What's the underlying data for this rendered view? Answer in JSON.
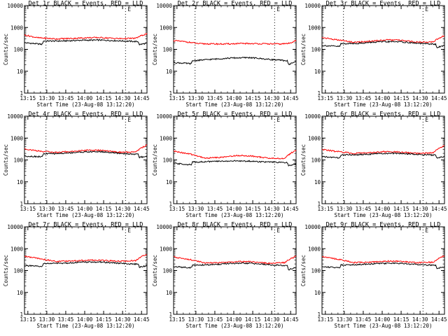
{
  "figure": {
    "xlabel": "Start Time (23-Aug-08 13:12:20)",
    "ylabel": "Counts/sec",
    "x_ticks": [
      "13:15",
      "13:30",
      "13:45",
      "14:00",
      "14:15",
      "14:30",
      "14:45"
    ],
    "y_ticks": [
      "1",
      "10",
      "100",
      "1000",
      "10000"
    ],
    "marker_letter": "E",
    "colors": {
      "events": "#000000",
      "lld": "#ff0000",
      "frame": "#000000"
    }
  },
  "chart_data": [
    {
      "type": "line",
      "title": "Det 1r BLACK = Events, RED = LLD",
      "yscale": "log",
      "ylim": [
        1,
        10000
      ],
      "xlim": [
        "13:12:20",
        "14:49:40"
      ],
      "x_range_minutes": [
        0,
        97
      ],
      "grid": false,
      "event_lines_minutes": [
        17,
        80
      ],
      "marker_minute": 83,
      "series": [
        {
          "name": "Events",
          "color": "#000000",
          "x_minutes": [
            0,
            14,
            15,
            30,
            45,
            60,
            75,
            90,
            91,
            97
          ],
          "values": [
            200,
            170,
            240,
            240,
            260,
            265,
            245,
            225,
            165,
            190
          ]
        },
        {
          "name": "LLD",
          "color": "#ff0000",
          "x_minutes": [
            0,
            10,
            25,
            40,
            50,
            60,
            75,
            88,
            97
          ],
          "values": [
            450,
            340,
            300,
            320,
            340,
            345,
            310,
            320,
            520
          ]
        }
      ]
    },
    {
      "type": "line",
      "title": "Det 2r BLACK = Events, RED = LLD",
      "yscale": "log",
      "ylim": [
        1,
        10000
      ],
      "xlim": [
        "13:12:20",
        "14:49:40"
      ],
      "x_range_minutes": [
        0,
        97
      ],
      "grid": false,
      "event_lines_minutes": [
        17,
        80
      ],
      "marker_minute": 83,
      "series": [
        {
          "name": "Events",
          "color": "#000000",
          "x_minutes": [
            0,
            14,
            15,
            30,
            45,
            60,
            75,
            90,
            91,
            97
          ],
          "values": [
            25,
            22,
            30,
            35,
            40,
            42,
            35,
            30,
            20,
            28
          ]
        },
        {
          "name": "LLD",
          "color": "#ff0000",
          "x_minutes": [
            0,
            10,
            20,
            40,
            55,
            70,
            85,
            92,
            97
          ],
          "values": [
            250,
            220,
            180,
            175,
            185,
            180,
            175,
            190,
            260
          ]
        }
      ]
    },
    {
      "type": "line",
      "title": "Det 3r BLACK = Events, RED = LLD",
      "yscale": "log",
      "ylim": [
        1,
        10000
      ],
      "xlim": [
        "13:12:20",
        "14:49:40"
      ],
      "x_range_minutes": [
        0,
        97
      ],
      "grid": false,
      "event_lines_minutes": [
        17,
        80
      ],
      "marker_minute": 83,
      "series": [
        {
          "name": "Events",
          "color": "#000000",
          "x_minutes": [
            0,
            14,
            15,
            30,
            45,
            60,
            75,
            90,
            91,
            97
          ],
          "values": [
            150,
            135,
            180,
            190,
            220,
            225,
            190,
            170,
            120,
            150
          ]
        },
        {
          "name": "LLD",
          "color": "#ff0000",
          "x_minutes": [
            0,
            10,
            25,
            40,
            50,
            60,
            75,
            88,
            97
          ],
          "values": [
            350,
            280,
            210,
            240,
            270,
            265,
            215,
            220,
            420
          ]
        }
      ]
    },
    {
      "type": "line",
      "title": "Det 4r BLACK = Events, RED = LLD",
      "yscale": "log",
      "ylim": [
        1,
        10000
      ],
      "xlim": [
        "13:12:20",
        "14:49:40"
      ],
      "x_range_minutes": [
        0,
        97
      ],
      "grid": false,
      "event_lines_minutes": [
        17,
        80
      ],
      "marker_minute": 83,
      "series": [
        {
          "name": "Events",
          "color": "#000000",
          "x_minutes": [
            0,
            14,
            15,
            30,
            45,
            60,
            75,
            90,
            91,
            97
          ],
          "values": [
            150,
            140,
            190,
            200,
            230,
            240,
            200,
            180,
            130,
            150
          ]
        },
        {
          "name": "LLD",
          "color": "#ff0000",
          "x_minutes": [
            0,
            10,
            25,
            40,
            50,
            60,
            75,
            88,
            97
          ],
          "values": [
            320,
            260,
            220,
            250,
            280,
            275,
            225,
            230,
            480
          ]
        }
      ]
    },
    {
      "type": "line",
      "title": "Det 5r BLACK = Events, RED = LLD",
      "yscale": "log",
      "ylim": [
        1,
        10000
      ],
      "xlim": [
        "13:12:20",
        "14:49:40"
      ],
      "x_range_minutes": [
        0,
        97
      ],
      "grid": false,
      "event_lines_minutes": [
        17,
        80
      ],
      "marker_minute": 83,
      "series": [
        {
          "name": "Events",
          "color": "#000000",
          "x_minutes": [
            0,
            14,
            15,
            30,
            45,
            60,
            75,
            90,
            91,
            97
          ],
          "values": [
            70,
            60,
            80,
            85,
            90,
            88,
            80,
            75,
            55,
            65
          ]
        },
        {
          "name": "LLD",
          "color": "#ff0000",
          "x_minutes": [
            0,
            10,
            25,
            40,
            50,
            60,
            75,
            88,
            97
          ],
          "values": [
            250,
            200,
            120,
            135,
            160,
            155,
            120,
            115,
            280
          ]
        }
      ]
    },
    {
      "type": "line",
      "title": "Det 6r BLACK = Events, RED = LLD",
      "yscale": "log",
      "ylim": [
        1,
        10000
      ],
      "xlim": [
        "13:12:20",
        "14:49:40"
      ],
      "x_range_minutes": [
        0,
        97
      ],
      "grid": false,
      "event_lines_minutes": [
        17,
        80
      ],
      "marker_minute": 83,
      "series": [
        {
          "name": "Events",
          "color": "#000000",
          "x_minutes": [
            0,
            14,
            15,
            30,
            45,
            60,
            75,
            90,
            91,
            97
          ],
          "values": [
            140,
            125,
            170,
            175,
            195,
            200,
            180,
            165,
            120,
            145
          ]
        },
        {
          "name": "LLD",
          "color": "#ff0000",
          "x_minutes": [
            0,
            10,
            25,
            40,
            50,
            60,
            75,
            88,
            97
          ],
          "values": [
            300,
            250,
            200,
            215,
            240,
            235,
            200,
            210,
            450
          ]
        }
      ]
    },
    {
      "type": "line",
      "title": "Det 7r BLACK = Events, RED = LLD",
      "yscale": "log",
      "ylim": [
        1,
        10000
      ],
      "xlim": [
        "13:12:20",
        "14:49:40"
      ],
      "x_range_minutes": [
        0,
        97
      ],
      "grid": false,
      "event_lines_minutes": [
        17,
        80
      ],
      "marker_minute": 83,
      "series": [
        {
          "name": "Events",
          "color": "#000000",
          "x_minutes": [
            0,
            14,
            15,
            30,
            45,
            60,
            75,
            90,
            91,
            97
          ],
          "values": [
            170,
            150,
            210,
            215,
            240,
            245,
            215,
            195,
            140,
            170
          ]
        },
        {
          "name": "LLD",
          "color": "#ff0000",
          "x_minutes": [
            0,
            10,
            25,
            40,
            50,
            60,
            75,
            88,
            97
          ],
          "values": [
            450,
            360,
            260,
            280,
            300,
            295,
            265,
            280,
            560
          ]
        }
      ]
    },
    {
      "type": "line",
      "title": "Det 8r BLACK = Events, RED = LLD",
      "yscale": "log",
      "ylim": [
        1,
        10000
      ],
      "xlim": [
        "13:12:20",
        "14:49:40"
      ],
      "x_range_minutes": [
        0,
        97
      ],
      "grid": false,
      "event_lines_minutes": [
        17,
        80
      ],
      "marker_minute": 83,
      "series": [
        {
          "name": "Events",
          "color": "#000000",
          "x_minutes": [
            0,
            14,
            15,
            30,
            45,
            60,
            75,
            90,
            91,
            97
          ],
          "values": [
            150,
            135,
            175,
            185,
            210,
            215,
            185,
            165,
            110,
            140
          ]
        },
        {
          "name": "LLD",
          "color": "#ff0000",
          "x_minutes": [
            0,
            10,
            25,
            40,
            50,
            60,
            75,
            88,
            97
          ],
          "values": [
            420,
            340,
            220,
            230,
            260,
            255,
            215,
            230,
            450
          ]
        }
      ]
    },
    {
      "type": "line",
      "title": "Det 9r BLACK = Events, RED = LLD",
      "yscale": "log",
      "ylim": [
        1,
        10000
      ],
      "xlim": [
        "13:12:20",
        "14:49:40"
      ],
      "x_range_minutes": [
        0,
        97
      ],
      "grid": false,
      "event_lines_minutes": [
        17,
        80
      ],
      "marker_minute": 83,
      "series": [
        {
          "name": "Events",
          "color": "#000000",
          "x_minutes": [
            0,
            14,
            15,
            30,
            45,
            60,
            75,
            90,
            91,
            97
          ],
          "values": [
            150,
            135,
            180,
            190,
            210,
            215,
            190,
            175,
            125,
            150
          ]
        },
        {
          "name": "LLD",
          "color": "#ff0000",
          "x_minutes": [
            0,
            10,
            25,
            40,
            50,
            60,
            75,
            88,
            97
          ],
          "values": [
            450,
            350,
            230,
            245,
            270,
            265,
            230,
            240,
            480
          ]
        }
      ]
    }
  ]
}
